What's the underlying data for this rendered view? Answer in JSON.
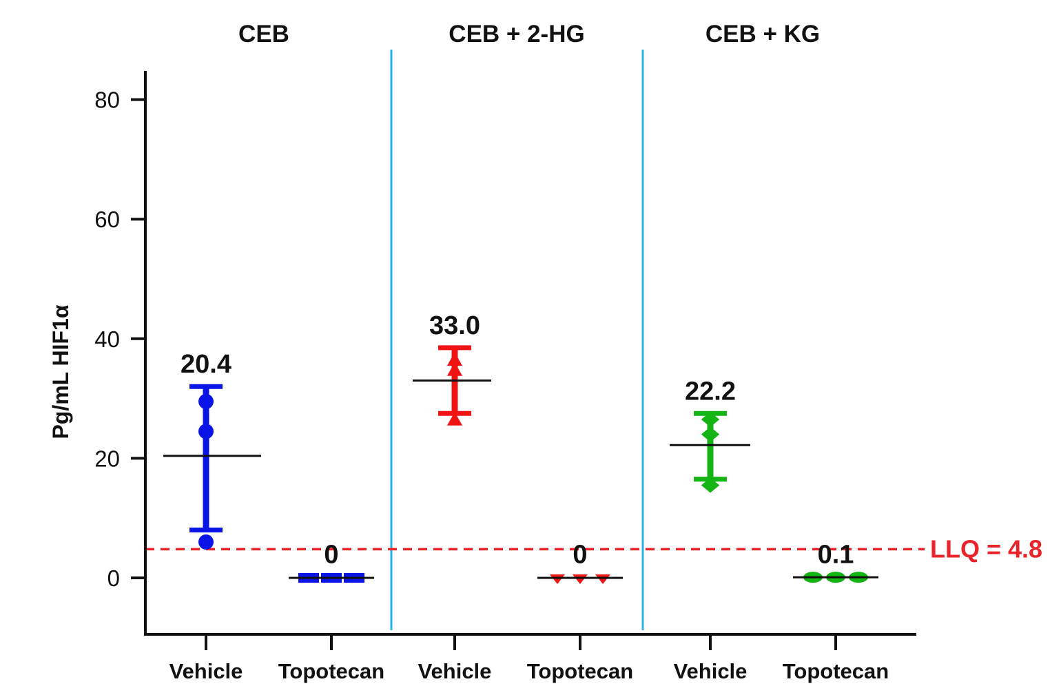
{
  "chart_data": {
    "type": "scatter",
    "ylabel": "Pg/mL HIF1α",
    "ylim": [
      -10,
      85
    ],
    "yticks": [
      0,
      20,
      40,
      60,
      80
    ],
    "grid": false,
    "groups": [
      {
        "title": "CEB",
        "color": "#0a14e6",
        "marker": "circle",
        "conditions": [
          {
            "label": "Vehicle",
            "mean_label": "20.4",
            "mean": 20.4,
            "error_low": 8,
            "error_high": 32,
            "points": [
              6,
              24.5,
              29.5
            ]
          },
          {
            "label": "Topotecan",
            "mean_label": "0",
            "mean": 0,
            "error_low": 0,
            "error_high": 0,
            "points": [
              0,
              0,
              0
            ]
          }
        ]
      },
      {
        "title": "CEB + 2-HG",
        "color": "#f01414",
        "marker": "triangle",
        "conditions": [
          {
            "label": "Vehicle",
            "mean_label": "33.0",
            "mean": 33.0,
            "error_low": 27.5,
            "error_high": 38.5,
            "points": [
              26.5,
              34.8,
              36.5
            ]
          },
          {
            "label": "Topotecan",
            "mean_label": "0",
            "mean": 0,
            "error_low": 0,
            "error_high": 0,
            "points": [
              0,
              0,
              0
            ]
          }
        ]
      },
      {
        "title": "CEB + KG",
        "color": "#14b414",
        "marker": "diamond",
        "conditions": [
          {
            "label": "Vehicle",
            "mean_label": "22.2",
            "mean": 22.2,
            "error_low": 16.5,
            "error_high": 27.5,
            "points": [
              15.5,
              24,
              26.5
            ]
          },
          {
            "label": "Topotecan",
            "mean_label": "0.1",
            "mean": 0.1,
            "error_low": 0.1,
            "error_high": 0.1,
            "points": [
              0.1,
              0.1,
              0.1
            ]
          }
        ]
      }
    ],
    "reference_line": {
      "value": 4.8,
      "label": "LLQ = 4.8",
      "color": "#e8242a"
    },
    "separator_color": "#2bb0e0"
  }
}
